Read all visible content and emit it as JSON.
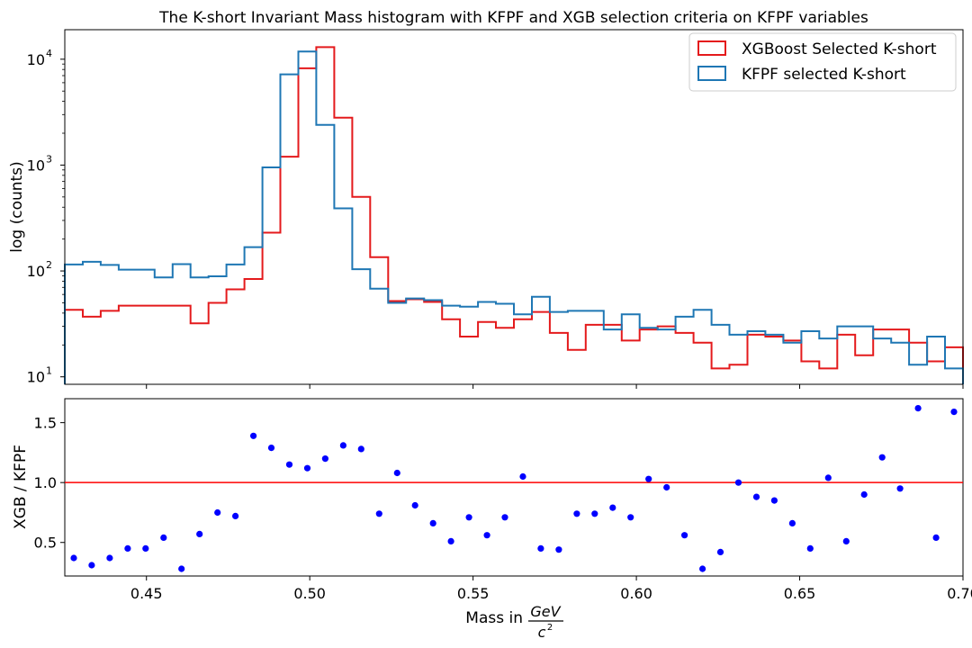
{
  "title": "The K-short Invariant Mass histogram with KFPF and XGB selection criteria on KFPF variables",
  "legend": {
    "items": [
      {
        "label": "XGBoost Selected K-short",
        "color": "#e41a1c"
      },
      {
        "label": "KFPF selected K-short",
        "color": "#1f77b4"
      }
    ]
  },
  "top_ylabel": "log (counts)",
  "bottom_ylabel": "XGB / KFPF",
  "xlabel_prefix": "Mass in",
  "xlabel_num": "GeV",
  "xlabel_den": "c",
  "xlabel_den_sup": "2",
  "chart_data": [
    {
      "type": "histogram-step",
      "title": "The K-short Invariant Mass histogram with KFPF and XGB selection criteria on KFPF variables",
      "ylabel": "log (counts)",
      "yscale": "log",
      "xlim": [
        0.425,
        0.7
      ],
      "ylim": [
        8.5,
        19000
      ],
      "bin_start": 0.425,
      "bin_width": 0.0055,
      "x_ticks": [
        "0.45",
        "0.50",
        "0.55",
        "0.60",
        "0.65",
        "0.70"
      ],
      "y_ticks": [
        {
          "value": 10,
          "label": "10",
          "sup": "1"
        },
        {
          "value": 100,
          "label": "10",
          "sup": "2"
        },
        {
          "value": 1000,
          "label": "10",
          "sup": "3"
        },
        {
          "value": 10000,
          "label": "10",
          "sup": "4"
        }
      ],
      "legend_position": "top-right",
      "series": [
        {
          "name": "XGBoost Selected K-short",
          "color": "#e41a1c",
          "values": [
            43,
            37,
            42,
            47,
            47,
            47,
            47,
            32,
            50,
            67,
            84,
            230,
            1200,
            8200,
            13000,
            2800,
            500,
            135,
            52,
            54,
            51,
            35,
            24,
            33,
            29,
            35,
            41,
            26,
            18,
            31,
            31,
            22,
            28,
            30,
            26,
            21,
            12,
            13,
            25,
            24,
            22,
            14,
            12,
            25,
            16,
            28,
            28,
            21,
            14,
            19
          ]
        },
        {
          "name": "KFPF selected K-short",
          "color": "#1f77b4",
          "values": [
            115,
            122,
            114,
            103,
            103,
            87,
            116,
            87,
            89,
            115,
            168,
            950,
            7200,
            11800,
            2400,
            390,
            104,
            68,
            50,
            55,
            53,
            47,
            46,
            51,
            49,
            39,
            57,
            41,
            42,
            42,
            28,
            39,
            29,
            28,
            37,
            43,
            31,
            25,
            27,
            25,
            21,
            27,
            23,
            30,
            30,
            23,
            21,
            13,
            24,
            12
          ]
        }
      ]
    },
    {
      "type": "scatter",
      "ylabel": "XGB / KFPF",
      "xlabel": "Mass in GeV / c^2",
      "xlim": [
        0.425,
        0.7
      ],
      "ylim": [
        0.22,
        1.7
      ],
      "x_ticks": [
        "0.45",
        "0.50",
        "0.55",
        "0.60",
        "0.65",
        "0.70"
      ],
      "y_ticks": [
        "0.5",
        "1.0",
        "1.5"
      ],
      "reference_line": {
        "y": 1.0,
        "x_from": 0.425,
        "x_to": 0.7,
        "color": "#ff0000"
      },
      "point_color": "#0000ff",
      "points": [
        [
          0.42775,
          0.37
        ],
        [
          0.43325,
          0.31
        ],
        [
          0.43875,
          0.37
        ],
        [
          0.44425,
          0.45
        ],
        [
          0.44975,
          0.45
        ],
        [
          0.45525,
          0.54
        ],
        [
          0.46075,
          0.28
        ],
        [
          0.46625,
          0.57
        ],
        [
          0.47175,
          0.75
        ],
        [
          0.47725,
          0.72
        ],
        [
          0.48275,
          1.39
        ],
        [
          0.48825,
          1.29
        ],
        [
          0.49375,
          1.15
        ],
        [
          0.49925,
          1.12
        ],
        [
          0.50475,
          1.2
        ],
        [
          0.51025,
          1.31
        ],
        [
          0.51575,
          1.28
        ],
        [
          0.52125,
          0.74
        ],
        [
          0.52675,
          1.08
        ],
        [
          0.53225,
          0.81
        ],
        [
          0.53775,
          0.66
        ],
        [
          0.54325,
          0.51
        ],
        [
          0.54875,
          0.71
        ],
        [
          0.55425,
          0.56
        ],
        [
          0.55975,
          0.71
        ],
        [
          0.56525,
          1.05
        ],
        [
          0.57075,
          0.45
        ],
        [
          0.57625,
          0.44
        ],
        [
          0.58175,
          0.74
        ],
        [
          0.58725,
          0.74
        ],
        [
          0.59275,
          0.79
        ],
        [
          0.59825,
          0.71
        ],
        [
          0.60375,
          1.03
        ],
        [
          0.60925,
          0.96
        ],
        [
          0.61475,
          0.56
        ],
        [
          0.62025,
          0.28
        ],
        [
          0.62575,
          0.42
        ],
        [
          0.63125,
          1.0
        ],
        [
          0.63675,
          0.88
        ],
        [
          0.64225,
          0.85
        ],
        [
          0.64775,
          0.66
        ],
        [
          0.65325,
          0.45
        ],
        [
          0.65875,
          1.04
        ],
        [
          0.66425,
          0.51
        ],
        [
          0.66975,
          0.9
        ],
        [
          0.67525,
          1.21
        ],
        [
          0.68075,
          0.95
        ],
        [
          0.68625,
          1.62
        ],
        [
          0.69175,
          0.54
        ],
        [
          0.69725,
          1.59
        ]
      ]
    }
  ]
}
